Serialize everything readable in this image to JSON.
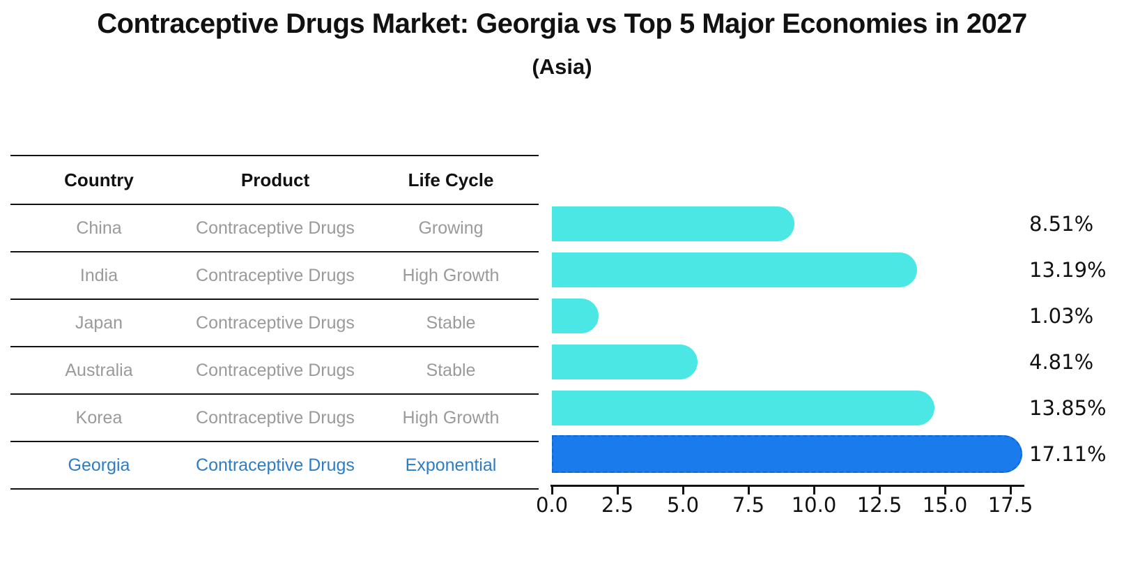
{
  "title": "Contraceptive Drugs Market: Georgia vs Top 5 Major Economies in 2027",
  "subtitle": "(Asia)",
  "table": {
    "headers": [
      "Country",
      "Product",
      "Life Cycle"
    ],
    "rows": [
      {
        "country": "China",
        "product": "Contraceptive Drugs",
        "life_cycle": "Growing"
      },
      {
        "country": "India",
        "product": "Contraceptive Drugs",
        "life_cycle": "High Growth"
      },
      {
        "country": "Japan",
        "product": "Contraceptive Drugs",
        "life_cycle": "Stable"
      },
      {
        "country": "Australia",
        "product": "Contraceptive Drugs",
        "life_cycle": "Stable"
      },
      {
        "country": "Korea",
        "product": "Contraceptive Drugs",
        "life_cycle": "High Growth"
      },
      {
        "country": "Georgia",
        "product": "Contraceptive Drugs",
        "life_cycle": "Exponential"
      }
    ],
    "highlight_row": "Georgia"
  },
  "chart_data": {
    "type": "bar",
    "orientation": "horizontal",
    "title": "Contraceptive Drugs Market: Georgia vs Top 5 Major Economies in 2027 (Asia)",
    "categories": [
      "China",
      "India",
      "Japan",
      "Australia",
      "Korea",
      "Georgia"
    ],
    "values": [
      8.51,
      13.19,
      1.03,
      4.81,
      13.85,
      17.11
    ],
    "value_labels": [
      "8.51%",
      "13.19%",
      "1.03%",
      "4.81%",
      "13.85%",
      "17.11%"
    ],
    "highlight_index": 5,
    "xlabel": "",
    "ylabel": "",
    "xlim": [
      0,
      18
    ],
    "xticks": [
      "0.0",
      "2.5",
      "5.0",
      "7.5",
      "10.0",
      "12.5",
      "15.0",
      "17.5"
    ],
    "xtick_values": [
      0,
      2.5,
      5,
      7.5,
      10,
      12.5,
      15,
      17.5
    ],
    "grid": false,
    "legend": false,
    "bar_color": "#4ae7e4",
    "highlight_color": "#1a7cec",
    "highlight_border_color": "#0d65d8",
    "highlight_text_color": "#2e7cc3",
    "muted_text_color": "#9a9a9a"
  }
}
